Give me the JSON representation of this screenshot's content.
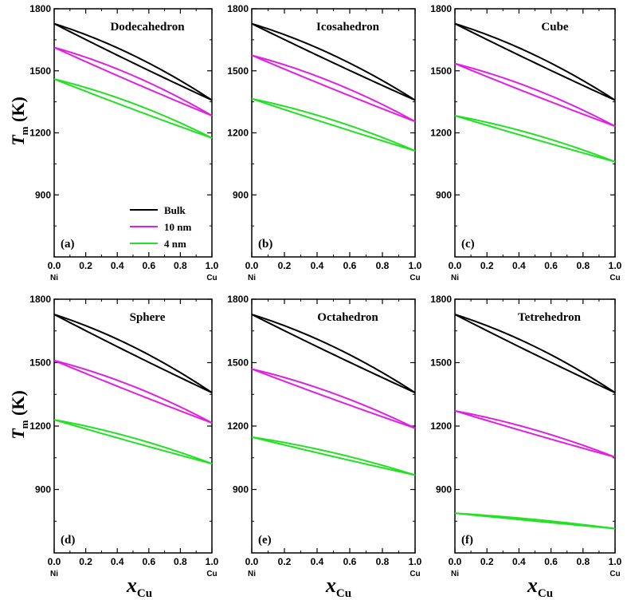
{
  "figure": {
    "ylabel_main": "T",
    "ylabel_sub": "m",
    "ylabel_unit": " (K)",
    "xlabel_main": "x",
    "xlabel_sub": "Cu",
    "x_start_element": "Ni",
    "x_end_element": "Cu"
  },
  "colors": {
    "bulk": "#000000",
    "10nm": "#e020e0",
    "4nm": "#22e022"
  },
  "legend": [
    {
      "key": "bulk",
      "label": "Bulk"
    },
    {
      "key": "10nm",
      "label": "10 nm"
    },
    {
      "key": "4nm",
      "label": "4 nm"
    }
  ],
  "chart_data": [
    {
      "type": "line",
      "letter": "(a)",
      "title": "Dodecahedron",
      "xlim": [
        0,
        1
      ],
      "ylim": [
        600,
        1800
      ],
      "xticks": [
        "0.0",
        "0.2",
        "0.4",
        "0.6",
        "0.8",
        "1.0"
      ],
      "yticks": [
        "900",
        "1200",
        "1500",
        "1800"
      ],
      "series": [
        {
          "name": "Bulk",
          "key": "bulk",
          "start": 1728,
          "end": 1358
        },
        {
          "name": "10 nm",
          "key": "10nm",
          "start": 1613,
          "end": 1283
        },
        {
          "name": "4 nm",
          "key": "4nm",
          "start": 1460,
          "end": 1175
        }
      ]
    },
    {
      "type": "line",
      "letter": "(b)",
      "title": "Icosahedron",
      "xlim": [
        0,
        1
      ],
      "ylim": [
        600,
        1800
      ],
      "xticks": [
        "0.0",
        "0.2",
        "0.4",
        "0.6",
        "0.8",
        "1.0"
      ],
      "yticks": [
        "900",
        "1200",
        "1500",
        "1800"
      ],
      "series": [
        {
          "name": "Bulk",
          "key": "bulk",
          "start": 1728,
          "end": 1358
        },
        {
          "name": "10 nm",
          "key": "10nm",
          "start": 1575,
          "end": 1255
        },
        {
          "name": "4 nm",
          "key": "4nm",
          "start": 1365,
          "end": 1113
        }
      ]
    },
    {
      "type": "line",
      "letter": "(c)",
      "title": "Cube",
      "xlim": [
        0,
        1
      ],
      "ylim": [
        600,
        1800
      ],
      "xticks": [
        "0.0",
        "0.2",
        "0.4",
        "0.6",
        "0.8",
        "1.0"
      ],
      "yticks": [
        "900",
        "1200",
        "1500",
        "1800"
      ],
      "series": [
        {
          "name": "Bulk",
          "key": "bulk",
          "start": 1728,
          "end": 1358
        },
        {
          "name": "10 nm",
          "key": "10nm",
          "start": 1535,
          "end": 1232
        },
        {
          "name": "4 nm",
          "key": "4nm",
          "start": 1283,
          "end": 1060
        }
      ]
    },
    {
      "type": "line",
      "letter": "(d)",
      "title": "Sphere",
      "xlim": [
        0,
        1
      ],
      "ylim": [
        600,
        1800
      ],
      "xticks": [
        "0.0",
        "0.2",
        "0.4",
        "0.6",
        "0.8",
        "1.0"
      ],
      "yticks": [
        "900",
        "1200",
        "1500",
        "1800"
      ],
      "series": [
        {
          "name": "Bulk",
          "key": "bulk",
          "start": 1728,
          "end": 1358
        },
        {
          "name": "10 nm",
          "key": "10nm",
          "start": 1510,
          "end": 1215
        },
        {
          "name": "4 nm",
          "key": "4nm",
          "start": 1230,
          "end": 1022
        }
      ]
    },
    {
      "type": "line",
      "letter": "(e)",
      "title": "Octahedron",
      "xlim": [
        0,
        1
      ],
      "ylim": [
        600,
        1800
      ],
      "xticks": [
        "0.0",
        "0.2",
        "0.4",
        "0.6",
        "0.8",
        "1.0"
      ],
      "yticks": [
        "900",
        "1200",
        "1500",
        "1800"
      ],
      "series": [
        {
          "name": "Bulk",
          "key": "bulk",
          "start": 1728,
          "end": 1358
        },
        {
          "name": "10 nm",
          "key": "10nm",
          "start": 1470,
          "end": 1190
        },
        {
          "name": "4 nm",
          "key": "4nm",
          "start": 1148,
          "end": 968
        }
      ]
    },
    {
      "type": "line",
      "letter": "(f)",
      "title": "Tetrehedron",
      "xlim": [
        0,
        1
      ],
      "ylim": [
        600,
        1800
      ],
      "xticks": [
        "0.0",
        "0.2",
        "0.4",
        "0.6",
        "0.8",
        "1.0"
      ],
      "yticks": [
        "900",
        "1200",
        "1500",
        "1800"
      ],
      "series": [
        {
          "name": "Bulk",
          "key": "bulk",
          "start": 1728,
          "end": 1358
        },
        {
          "name": "10 nm",
          "key": "10nm",
          "start": 1272,
          "end": 1053
        },
        {
          "name": "4 nm",
          "key": "4nm",
          "start": 788,
          "end": 715
        }
      ]
    }
  ]
}
